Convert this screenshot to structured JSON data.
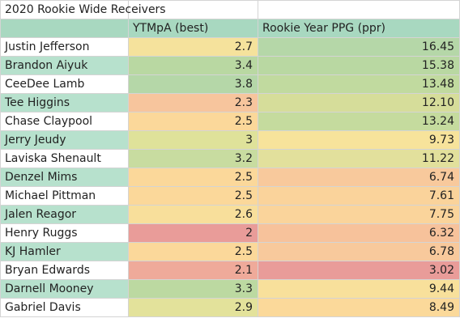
{
  "title": "2020 Rookie Wide Receivers",
  "headers": {
    "name": "",
    "ytmpa": "YTMpA (best)",
    "ppg": "Rookie Year PPG (ppr)"
  },
  "colors": {
    "header": "#a8d8c0",
    "name_alt": "#b7e1cd",
    "name_white": "#ffffff"
  },
  "rows": [
    {
      "name": "Justin Jefferson",
      "ytmpa": "2.7",
      "ppg": "16.45",
      "name_color": "#ffffff",
      "ytmpa_color": "#f5e29c",
      "ppg_color": "#b5d7a8"
    },
    {
      "name": "Brandon Aiyuk",
      "ytmpa": "3.4",
      "ppg": "15.38",
      "name_color": "#b7e1cd",
      "ytmpa_color": "#b9d8a2",
      "ppg_color": "#b9d8a2"
    },
    {
      "name": "CeeDee Lamb",
      "ytmpa": "3.8",
      "ppg": "13.48",
      "name_color": "#ffffff",
      "ytmpa_color": "#b5d7a8",
      "ppg_color": "#c1da9f"
    },
    {
      "name": "Tee Higgins",
      "ytmpa": "2.3",
      "ppg": "12.10",
      "name_color": "#b7e1cd",
      "ytmpa_color": "#f7c59d",
      "ppg_color": "#d6dd9a"
    },
    {
      "name": "Chase Claypool",
      "ytmpa": "2.5",
      "ppg": "13.24",
      "name_color": "#ffffff",
      "ytmpa_color": "#fbd89a",
      "ppg_color": "#c5db9e"
    },
    {
      "name": "Jerry Jeudy",
      "ytmpa": "3",
      "ppg": "9.73",
      "name_color": "#b7e1cd",
      "ytmpa_color": "#dfe29a",
      "ppg_color": "#f7e39b"
    },
    {
      "name": "Laviska Shenault",
      "ytmpa": "3.2",
      "ppg": "11.22",
      "name_color": "#ffffff",
      "ytmpa_color": "#c8dca0",
      "ppg_color": "#e2e09c"
    },
    {
      "name": "Denzel Mims",
      "ytmpa": "2.5",
      "ppg": "6.74",
      "name_color": "#b7e1cd",
      "ytmpa_color": "#fbd89a",
      "ppg_color": "#f8c99c"
    },
    {
      "name": "Michael Pittman",
      "ytmpa": "2.5",
      "ppg": "7.61",
      "name_color": "#ffffff",
      "ytmpa_color": "#fbd89a",
      "ppg_color": "#fad39b"
    },
    {
      "name": "Jalen Reagor",
      "ytmpa": "2.6",
      "ppg": "7.75",
      "name_color": "#b7e1cd",
      "ytmpa_color": "#f8df9b",
      "ppg_color": "#fad49b"
    },
    {
      "name": "Henry Ruggs",
      "ytmpa": "2",
      "ppg": "6.32",
      "name_color": "#ffffff",
      "ytmpa_color": "#e99c99",
      "ppg_color": "#f7c29b"
    },
    {
      "name": "KJ Hamler",
      "ytmpa": "2.5",
      "ppg": "6.78",
      "name_color": "#b7e1cd",
      "ytmpa_color": "#fbd89a",
      "ppg_color": "#f8c99c"
    },
    {
      "name": "Bryan Edwards",
      "ytmpa": "2.1",
      "ppg": "3.02",
      "name_color": "#ffffff",
      "ytmpa_color": "#efaa9a",
      "ppg_color": "#e99c99"
    },
    {
      "name": "Darnell Mooney",
      "ytmpa": "3.3",
      "ppg": "9.44",
      "name_color": "#b7e1cd",
      "ytmpa_color": "#bcd9a1",
      "ppg_color": "#f8e09b"
    },
    {
      "name": "Gabriel Davis",
      "ytmpa": "2.9",
      "ppg": "8.49",
      "name_color": "#ffffff",
      "ytmpa_color": "#e3e29b",
      "ppg_color": "#fbd99a"
    }
  ]
}
